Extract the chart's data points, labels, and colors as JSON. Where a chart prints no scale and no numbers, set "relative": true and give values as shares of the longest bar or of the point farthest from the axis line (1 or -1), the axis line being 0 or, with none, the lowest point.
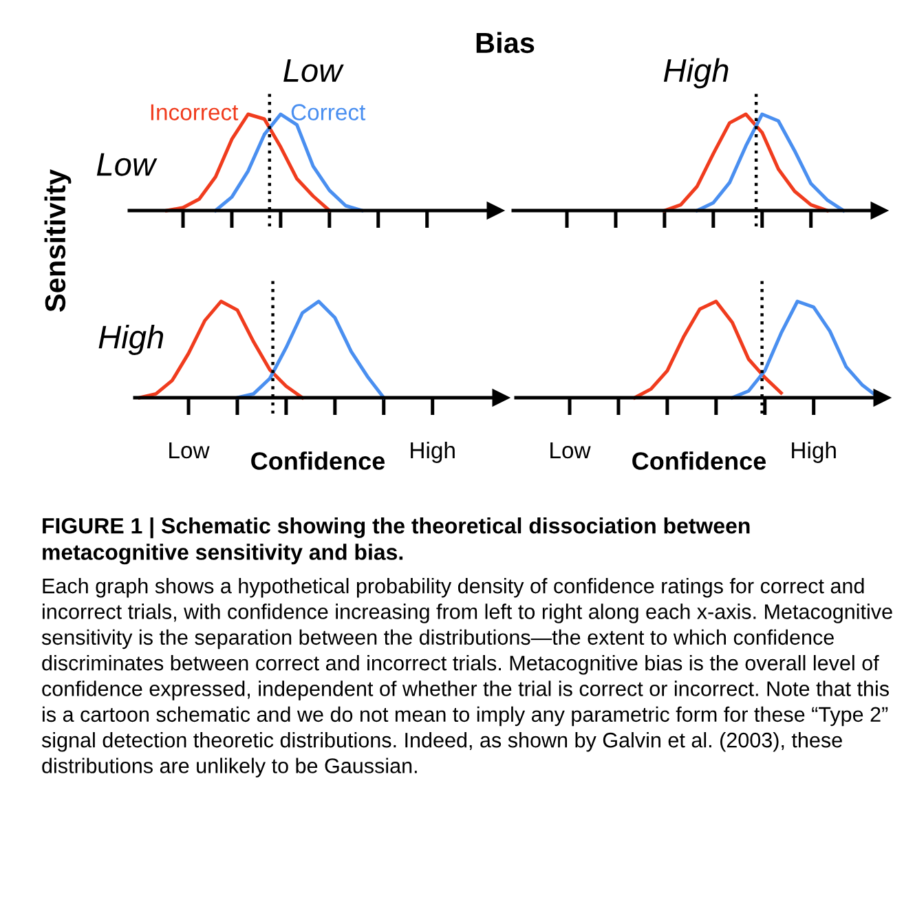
{
  "chart_data": [
    {
      "type": "line",
      "relative": true,
      "title": "Low",
      "ylabel": "Low",
      "tick_labels": false,
      "categories": [
        null,
        null,
        null,
        null,
        null,
        null,
        null,
        null,
        null,
        null,
        null,
        null,
        null,
        null,
        null,
        null,
        null,
        null,
        null,
        null,
        null,
        null,
        null
      ],
      "series": [
        {
          "name": "Incorrect",
          "color": "#f03c1e",
          "values": [
            null,
            null,
            0,
            0.03,
            0.12,
            0.35,
            0.74,
            1.0,
            0.95,
            0.66,
            0.33,
            0.15,
            0,
            null,
            null,
            null,
            null,
            null,
            null,
            null,
            null,
            null,
            null
          ]
        },
        {
          "name": "Correct",
          "color": "#4a8ff0",
          "values": [
            null,
            null,
            null,
            null,
            null,
            0,
            0.14,
            0.41,
            0.79,
            1.0,
            0.89,
            0.46,
            0.21,
            0.05,
            0,
            null,
            null,
            null,
            null,
            null,
            null,
            null,
            null
          ]
        }
      ]
    },
    {
      "type": "line",
      "relative": true,
      "title": "High",
      "tick_labels": false,
      "categories": [
        null,
        null,
        null,
        null,
        null,
        null,
        null,
        null,
        null,
        null,
        null,
        null,
        null,
        null,
        null,
        null,
        null,
        null,
        null,
        null,
        null,
        null,
        null
      ],
      "series": [
        {
          "color": "#f03c1e",
          "values": [
            null,
            null,
            null,
            null,
            null,
            null,
            null,
            null,
            null,
            0,
            0.06,
            0.25,
            0.59,
            0.91,
            1.0,
            0.81,
            0.43,
            0.2,
            0.06,
            0,
            null,
            null,
            null
          ]
        },
        {
          "color": "#4a8ff0",
          "values": [
            null,
            null,
            null,
            null,
            null,
            null,
            null,
            null,
            null,
            null,
            null,
            0,
            0.08,
            0.29,
            0.67,
            1.0,
            0.93,
            0.62,
            0.28,
            0.11,
            0,
            null,
            null
          ]
        }
      ]
    },
    {
      "type": "line",
      "relative": true,
      "ylabel": "High",
      "xlabel": "Confidence",
      "tick_labels": "x",
      "categories": [
        null,
        null,
        null,
        "Low",
        null,
        null,
        null,
        null,
        null,
        null,
        null,
        null,
        null,
        null,
        null,
        null,
        null,
        null,
        "High",
        null,
        null,
        null,
        null
      ],
      "series": [
        {
          "color": "#f03c1e",
          "values": [
            0,
            0.04,
            0.18,
            0.46,
            0.8,
            1.0,
            0.91,
            0.58,
            0.29,
            0.12,
            0,
            null,
            null,
            null,
            null,
            null,
            null,
            null,
            null,
            null,
            null,
            null,
            null
          ]
        },
        {
          "color": "#4a8ff0",
          "values": [
            null,
            null,
            null,
            null,
            null,
            null,
            0,
            0.04,
            0.2,
            0.52,
            0.88,
            1.0,
            0.83,
            0.48,
            0.22,
            0,
            null,
            null,
            null,
            null,
            null,
            null,
            null
          ]
        }
      ]
    },
    {
      "type": "line",
      "relative": true,
      "xlabel": "Confidence",
      "tick_labels": "x",
      "categories": [
        null,
        null,
        null,
        "Low",
        null,
        null,
        null,
        null,
        null,
        null,
        null,
        null,
        null,
        null,
        null,
        null,
        null,
        null,
        "High",
        null,
        null,
        null,
        null
      ],
      "series": [
        {
          "color": "#f03c1e",
          "values": [
            null,
            null,
            null,
            null,
            null,
            null,
            null,
            0,
            0.09,
            0.28,
            0.63,
            0.92,
            1.0,
            0.78,
            0.4,
            0.21,
            0.05,
            null,
            null,
            null,
            null,
            null,
            null
          ]
        },
        {
          "color": "#4a8ff0",
          "values": [
            null,
            null,
            null,
            null,
            null,
            null,
            null,
            null,
            null,
            null,
            null,
            null,
            null,
            0,
            0.07,
            0.28,
            0.67,
            1.0,
            0.94,
            0.69,
            0.32,
            0.13,
            0
          ]
        }
      ]
    },
    {
      "type": "other",
      "title": "Bias",
      "ylabel": "Sensitivity",
      "annotations": [
        "FIGURE 1 | Schematic showing the theoretical dissociation between metacognitive sensitivity and bias.",
        "Each graph shows a hypothetical probability density of confidence ratings for correct and incorrect trials, with confidence increasing from left to right along each x-axis. Metacognitive sensitivity is the separation between the distributions—the extent to which confidence discriminates between correct and incorrect trials. Metacognitive bias is the overall level of confidence expressed, independent of whether the trial is correct or incorrect. Note that this is a cartoon schematic and we do not mean to imply any parametric form for these “Type 2” signal detection theoretic distributions. Indeed, as shown by Galvin et al. (2003), these distributions are unlikely to be Gaussian."
      ]
    }
  ]
}
